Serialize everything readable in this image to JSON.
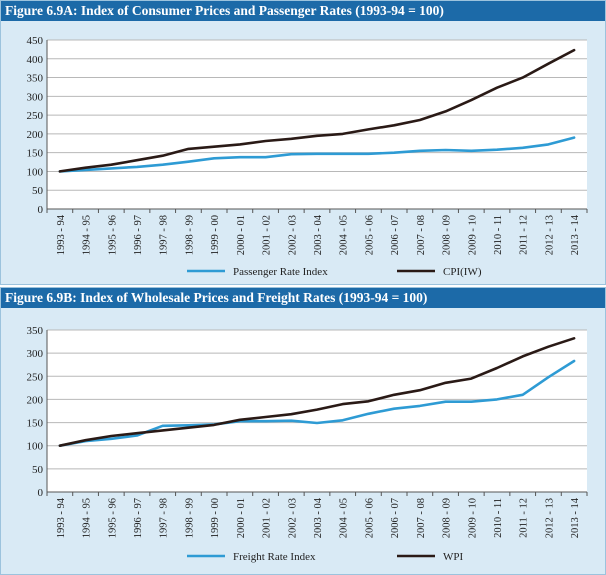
{
  "chart_data": [
    {
      "type": "line",
      "title": "Figure 6.9A:  Index of Consumer Prices and Passenger Rates (1993-94 = 100)",
      "xlabel": "",
      "ylabel": "",
      "ylim": [
        0,
        450
      ],
      "yticks": [
        0,
        50,
        100,
        150,
        200,
        250,
        300,
        350,
        400,
        450
      ],
      "grid": true,
      "legend_position": "bottom-center",
      "categories": [
        "1993 - 94",
        "1994 - 95",
        "1995 - 96",
        "1996 - 97",
        "1997 - 98",
        "1998 - 99",
        "1999 - 00",
        "2000 - 01",
        "2001 - 02",
        "2002 - 03",
        "2003 - 04",
        "2004 - 05",
        "2005 - 06",
        "2006 - 07",
        "2007 - 08",
        "2008 - 09",
        "2009 - 10",
        "2010 - 11",
        "2011 - 12",
        "2012 - 13",
        "2013 - 14"
      ],
      "series": [
        {
          "name": "Passenger Rate Index",
          "color": "#2e9bd4",
          "values": [
            100,
            104,
            108,
            112,
            118,
            126,
            135,
            138,
            138,
            146,
            147,
            147,
            147,
            150,
            155,
            157,
            155,
            158,
            163,
            172,
            190
          ]
        },
        {
          "name": "CPI(IW)",
          "color": "#2a1a16",
          "values": [
            100,
            110,
            118,
            130,
            142,
            160,
            166,
            172,
            181,
            187,
            195,
            200,
            212,
            223,
            237,
            260,
            290,
            323,
            350,
            387,
            423
          ]
        }
      ]
    },
    {
      "type": "line",
      "title": "Figure 6.9B:  Index of Wholesale Prices and Freight Rates (1993-94 = 100)",
      "xlabel": "",
      "ylabel": "",
      "ylim": [
        0,
        350
      ],
      "yticks": [
        0,
        50,
        100,
        150,
        200,
        250,
        300,
        350
      ],
      "grid": true,
      "legend_position": "bottom-center",
      "categories": [
        "1993 - 94",
        "1994 - 95",
        "1995 - 96",
        "1996 - 97",
        "1997 - 98",
        "1998 - 99",
        "1999 - 00",
        "2000 - 01",
        "2001 - 02",
        "2002 - 03",
        "2003 - 04",
        "2004 - 05",
        "2005 - 06",
        "2006 - 07",
        "2007 - 08",
        "2008 - 09",
        "2009 - 10",
        "2010 - 11",
        "2011 - 12",
        "2012 - 13",
        "2013 - 14"
      ],
      "series": [
        {
          "name": "Freight Rate Index",
          "color": "#2e9bd4",
          "values": [
            100,
            110,
            115,
            122,
            143,
            144,
            146,
            153,
            153,
            154,
            149,
            155,
            169,
            180,
            186,
            195,
            195,
            200,
            210,
            248,
            283
          ]
        },
        {
          "name": "WPI",
          "color": "#2a1a16",
          "values": [
            100,
            112,
            121,
            127,
            133,
            139,
            145,
            156,
            162,
            168,
            178,
            190,
            196,
            210,
            220,
            236,
            245,
            268,
            293,
            314,
            332
          ]
        }
      ]
    }
  ]
}
